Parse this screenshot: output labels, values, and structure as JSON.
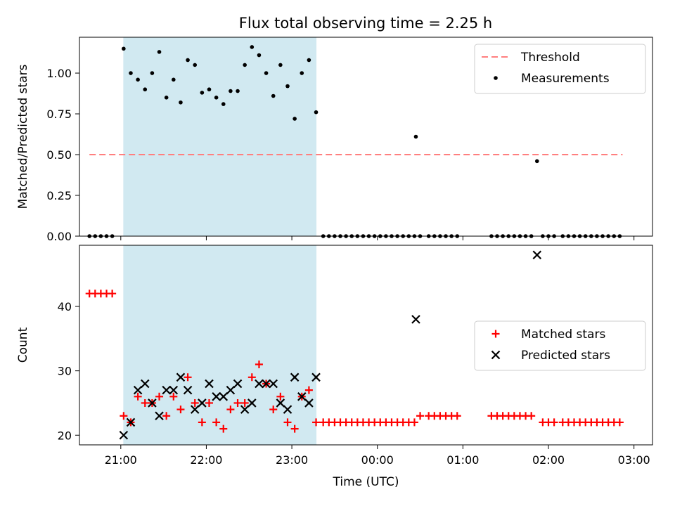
{
  "figure": {
    "title": "Flux total observing time = 2.25 h",
    "background": "#ffffff"
  },
  "chart_data": [
    {
      "type": "scatter",
      "title": "Flux total observing time = 2.25 h",
      "xlabel": "",
      "ylabel": "Matched/Predicted stars",
      "xlim": [
        "20:31",
        "03:13"
      ],
      "ylim": [
        0,
        1.22
      ],
      "xticks": [
        "21:00",
        "22:00",
        "23:00",
        "00:00",
        "01:00",
        "02:00",
        "03:00"
      ],
      "yticks": [
        "0.00",
        "0.25",
        "0.50",
        "0.75",
        "1.00"
      ],
      "highlight_span": {
        "x": [
          "21:02",
          "23:17"
        ],
        "color": "#add8e6"
      },
      "legend": {
        "position": "upper right",
        "entries": [
          "Threshold",
          "Measurements"
        ]
      },
      "threshold": {
        "name": "Threshold",
        "y": 0.5,
        "x": [
          "20:38",
          "02:52"
        ],
        "color": "#ff7f7f"
      },
      "series": [
        {
          "name": "Measurements",
          "marker": "dot",
          "color": "#000000",
          "x": [
            "20:38",
            "20:42",
            "20:46",
            "20:50",
            "20:54",
            "21:02",
            "21:07",
            "21:12",
            "21:17",
            "21:22",
            "21:27",
            "21:32",
            "21:37",
            "21:42",
            "21:47",
            "21:52",
            "21:57",
            "22:02",
            "22:07",
            "22:12",
            "22:17",
            "22:22",
            "22:27",
            "22:32",
            "22:37",
            "22:42",
            "22:47",
            "22:52",
            "22:57",
            "23:02",
            "23:07",
            "23:12",
            "23:17",
            "23:22",
            "23:26",
            "23:30",
            "23:34",
            "23:38",
            "23:42",
            "23:46",
            "23:50",
            "23:54",
            "23:58",
            "00:02",
            "00:06",
            "00:10",
            "00:14",
            "00:18",
            "00:22",
            "00:26",
            "00:30",
            "00:36",
            "00:40",
            "00:44",
            "00:48",
            "00:52",
            "00:56",
            "01:20",
            "01:24",
            "01:28",
            "01:32",
            "01:36",
            "01:40",
            "01:44",
            "01:48",
            "01:56",
            "02:00",
            "02:04",
            "02:10",
            "02:14",
            "02:18",
            "02:22",
            "02:26",
            "02:30",
            "02:34",
            "02:38",
            "02:42",
            "02:46",
            "02:50"
          ],
          "y": [
            0,
            0,
            0,
            0,
            0,
            1.15,
            1.0,
            0.96,
            0.9,
            1.0,
            1.13,
            0.85,
            0.96,
            0.82,
            1.08,
            1.05,
            0.88,
            0.9,
            0.85,
            0.81,
            0.89,
            0.89,
            1.05,
            1.16,
            1.11,
            1.0,
            0.86,
            1.05,
            0.92,
            0.72,
            1.0,
            1.08,
            0.76,
            0,
            0,
            0,
            0,
            0,
            0,
            0,
            0,
            0,
            0,
            0,
            0,
            0,
            0,
            0,
            0,
            0,
            0,
            0,
            0,
            0,
            0,
            0,
            0,
            0,
            0,
            0,
            0,
            0,
            0,
            0,
            0,
            0,
            0,
            0,
            0,
            0,
            0,
            0,
            0,
            0,
            0,
            0,
            0,
            0,
            0
          ]
        },
        {
          "name": "Measurements",
          "marker": "dot",
          "color": "#000000",
          "x": [
            "00:27",
            "01:52"
          ],
          "y": [
            0.61,
            0.46
          ]
        }
      ]
    },
    {
      "type": "scatter",
      "title": "",
      "xlabel": "Time (UTC)",
      "ylabel": "Count",
      "xlim": [
        "20:31",
        "03:13"
      ],
      "ylim": [
        18.5,
        49.5
      ],
      "xticks": [
        "21:00",
        "22:00",
        "23:00",
        "00:00",
        "01:00",
        "02:00",
        "03:00"
      ],
      "yticks": [
        "20",
        "30",
        "40"
      ],
      "highlight_span": {
        "x": [
          "21:02",
          "23:17"
        ],
        "color": "#add8e6"
      },
      "legend": {
        "position": "center right",
        "entries": [
          "Matched stars",
          "Predicted stars"
        ]
      },
      "series": [
        {
          "name": "Matched stars",
          "marker": "+",
          "color": "#ff0000",
          "x": [
            "20:38",
            "20:42",
            "20:46",
            "20:50",
            "20:54",
            "21:02",
            "21:07",
            "21:12",
            "21:17",
            "21:22",
            "21:27",
            "21:32",
            "21:37",
            "21:42",
            "21:47",
            "21:52",
            "21:57",
            "22:02",
            "22:07",
            "22:12",
            "22:17",
            "22:22",
            "22:27",
            "22:32",
            "22:37",
            "22:42",
            "22:47",
            "22:52",
            "22:57",
            "23:02",
            "23:07",
            "23:12",
            "23:17",
            "23:22",
            "23:26",
            "23:30",
            "23:34",
            "23:38",
            "23:42",
            "23:46",
            "23:50",
            "23:54",
            "23:58",
            "00:02",
            "00:06",
            "00:10",
            "00:14",
            "00:18",
            "00:22",
            "00:26",
            "00:30",
            "00:36",
            "00:40",
            "00:44",
            "00:48",
            "00:52",
            "00:56",
            "01:20",
            "01:24",
            "01:28",
            "01:32",
            "01:36",
            "01:40",
            "01:44",
            "01:48",
            "01:56",
            "02:00",
            "02:04",
            "02:10",
            "02:14",
            "02:18",
            "02:22",
            "02:26",
            "02:30",
            "02:34",
            "02:38",
            "02:42",
            "02:46",
            "02:50"
          ],
          "y": [
            42,
            42,
            42,
            42,
            42,
            23,
            22,
            26,
            25,
            25,
            26,
            23,
            26,
            24,
            29,
            25,
            22,
            25,
            22,
            21,
            24,
            25,
            25,
            29,
            31,
            28,
            24,
            26,
            22,
            21,
            26,
            27,
            22,
            22,
            22,
            22,
            22,
            22,
            22,
            22,
            22,
            22,
            22,
            22,
            22,
            22,
            22,
            22,
            22,
            22,
            23,
            23,
            23,
            23,
            23,
            23,
            23,
            23,
            23,
            23,
            23,
            23,
            23,
            23,
            23,
            22,
            22,
            22,
            22,
            22,
            22,
            22,
            22,
            22,
            22,
            22,
            22,
            22,
            22
          ]
        },
        {
          "name": "Predicted stars",
          "marker": "x",
          "color": "#000000",
          "x": [
            "21:02",
            "21:07",
            "21:12",
            "21:17",
            "21:22",
            "21:27",
            "21:32",
            "21:37",
            "21:42",
            "21:47",
            "21:52",
            "21:57",
            "22:02",
            "22:07",
            "22:12",
            "22:17",
            "22:22",
            "22:27",
            "22:32",
            "22:37",
            "22:42",
            "22:47",
            "22:52",
            "22:57",
            "23:02",
            "23:07",
            "23:12",
            "23:17",
            "00:27",
            "01:52"
          ],
          "y": [
            20,
            22,
            27,
            28,
            25,
            23,
            27,
            27,
            29,
            27,
            24,
            25,
            28,
            26,
            26,
            27,
            28,
            24,
            25,
            28,
            28,
            28,
            25,
            24,
            29,
            26,
            25,
            29,
            38,
            48
          ]
        }
      ]
    }
  ]
}
